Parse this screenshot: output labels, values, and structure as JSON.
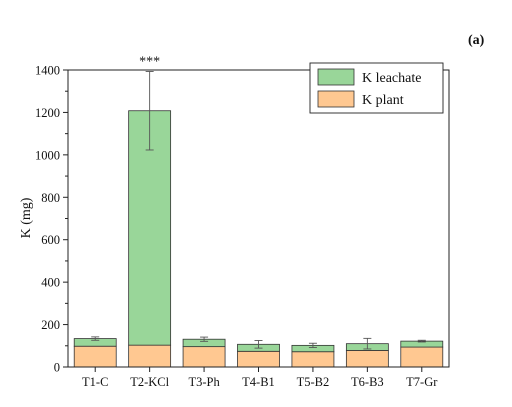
{
  "panel_label": "(a)",
  "chart_data": {
    "type": "bar",
    "stacked": true,
    "categories": [
      "T1-C",
      "T2-KCl",
      "T3-Ph",
      "T4-B1",
      "T5-B2",
      "T6-B3",
      "T7-Gr"
    ],
    "series": [
      {
        "name": "K plant",
        "color": "#ffc891",
        "values": [
          98,
          103,
          96,
          74,
          72,
          78,
          94
        ]
      },
      {
        "name": "K leachate",
        "color": "#99d699",
        "values": [
          36,
          1105,
          35,
          33,
          30,
          32,
          28
        ]
      }
    ],
    "totals_error": [
      8,
      185,
      10,
      18,
      10,
      25,
      4
    ],
    "annotations": [
      {
        "category": "T2-KCl",
        "text": "***"
      }
    ],
    "ylabel": "K (mg)",
    "xlabel": "",
    "ylim": [
      0,
      1400
    ],
    "yticks": [
      0,
      200,
      400,
      600,
      800,
      1000,
      1200,
      1400
    ],
    "grid": false,
    "legend": {
      "position": "top-right",
      "order": [
        "K leachate",
        "K plant"
      ]
    }
  }
}
